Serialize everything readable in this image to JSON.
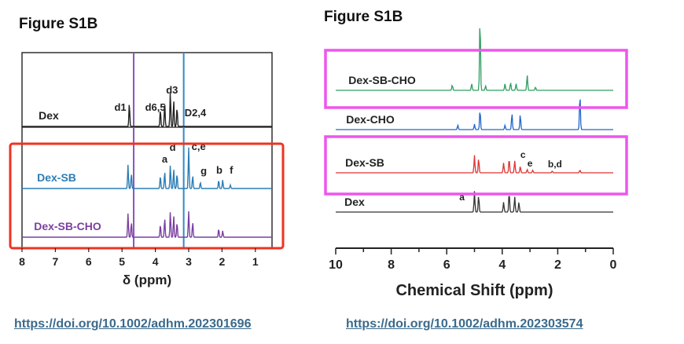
{
  "left": {
    "figure_title": "Figure S1B",
    "doi": "https://doi.org/10.1002/adhm.202301696"
  },
  "right": {
    "figure_title": "Figure S1B",
    "doi": "https://doi.org/10.1002/adhm.202303574"
  },
  "colors": {
    "left_highlight_box": "#ee3322",
    "right_highlight_box": "#ee55ee",
    "dex": "#222222",
    "dex_sb_left": "#2a7db5",
    "dex_sb_cho_left": "#7b3fa0",
    "dex_sb_cho_right": "#2e9e5e",
    "dex_cho_right": "#2266cc",
    "dex_sb_right": "#dd3333",
    "dex_right": "#333333",
    "ref_line_purple": "#8855bb",
    "ref_line_blue": "#3388cc",
    "ref_line_teal": "#22aa99"
  },
  "chart_data": [
    {
      "type": "line",
      "title": "Figure S1B",
      "xlabel": "δ (ppm)",
      "ylabel": "",
      "xlim": [
        8,
        0.5
      ],
      "x_axis_reversed": true,
      "xticks": [
        "8",
        "7",
        "6",
        "5",
        "4",
        "3",
        "2",
        "1"
      ],
      "reference_lines_ppm": [
        4.65,
        3.15
      ],
      "highlight": {
        "series": [
          "Dex-SB",
          "Dex-SB-CHO"
        ],
        "color": "#ee3322"
      },
      "series": [
        {
          "name": "Dex",
          "color": "#222222",
          "peaks": [
            {
              "x": 4.78,
              "h": 0.55
            },
            {
              "x": 3.85,
              "h": 0.4
            },
            {
              "x": 3.72,
              "h": 0.55
            },
            {
              "x": 3.55,
              "h": 0.8
            },
            {
              "x": 3.45,
              "h": 0.6
            },
            {
              "x": 3.35,
              "h": 0.45
            }
          ]
        },
        {
          "name": "Dex-SB",
          "color": "#2a7db5",
          "peaks": [
            {
              "x": 4.82,
              "h": 0.55
            },
            {
              "x": 4.72,
              "h": 0.35
            },
            {
              "x": 3.85,
              "h": 0.3
            },
            {
              "x": 3.72,
              "h": 0.4
            },
            {
              "x": 3.55,
              "h": 0.55
            },
            {
              "x": 3.45,
              "h": 0.45
            },
            {
              "x": 3.35,
              "h": 0.35
            },
            {
              "x": 3.0,
              "h": 0.95
            },
            {
              "x": 2.88,
              "h": 0.3
            },
            {
              "x": 2.65,
              "h": 0.15
            },
            {
              "x": 2.1,
              "h": 0.2
            },
            {
              "x": 1.98,
              "h": 0.2
            },
            {
              "x": 1.75,
              "h": 0.08
            }
          ]
        },
        {
          "name": "Dex-SB-CHO",
          "color": "#7b3fa0",
          "peaks": [
            {
              "x": 4.82,
              "h": 0.55
            },
            {
              "x": 4.72,
              "h": 0.35
            },
            {
              "x": 3.85,
              "h": 0.3
            },
            {
              "x": 3.72,
              "h": 0.45
            },
            {
              "x": 3.55,
              "h": 0.6
            },
            {
              "x": 3.45,
              "h": 0.5
            },
            {
              "x": 3.35,
              "h": 0.35
            },
            {
              "x": 3.0,
              "h": 0.6
            },
            {
              "x": 2.88,
              "h": 0.35
            },
            {
              "x": 2.1,
              "h": 0.2
            },
            {
              "x": 1.98,
              "h": 0.15
            }
          ]
        }
      ],
      "annotations": [
        {
          "text": "d1",
          "x": 5.05,
          "series": "Dex"
        },
        {
          "text": "d6,5",
          "x": 4.0,
          "series": "Dex"
        },
        {
          "text": "d3",
          "x": 3.5,
          "series": "Dex"
        },
        {
          "text": "D2,4",
          "x": 2.8,
          "series": "Dex"
        },
        {
          "text": "d",
          "x": 3.48,
          "series": "Dex-SB"
        },
        {
          "text": "a",
          "x": 3.72,
          "series": "Dex-SB"
        },
        {
          "text": "c,e",
          "x": 2.7,
          "series": "Dex-SB"
        },
        {
          "text": "g",
          "x": 2.55,
          "series": "Dex-SB"
        },
        {
          "text": "b",
          "x": 2.08,
          "series": "Dex-SB"
        },
        {
          "text": "f",
          "x": 1.72,
          "series": "Dex-SB"
        }
      ]
    },
    {
      "type": "line",
      "title": "Figure S1B",
      "xlabel": "Chemical Shift (ppm)",
      "ylabel": "",
      "xlim": [
        10,
        0
      ],
      "x_axis_reversed": true,
      "xticks": [
        "10",
        "8",
        "6",
        "4",
        "2",
        "0"
      ],
      "highlight": {
        "series": [
          "Dex-SB-CHO",
          "Dex-SB"
        ],
        "color": "#ee55ee"
      },
      "series": [
        {
          "name": "Dex-SB-CHO",
          "color": "#2e9e5e",
          "peaks": [
            {
              "x": 4.8,
              "h": 3.3
            },
            {
              "x": 5.8,
              "h": 0.25
            },
            {
              "x": 5.1,
              "h": 0.3
            },
            {
              "x": 4.6,
              "h": 0.2
            },
            {
              "x": 3.9,
              "h": 0.3
            },
            {
              "x": 3.7,
              "h": 0.35
            },
            {
              "x": 3.5,
              "h": 0.3
            },
            {
              "x": 3.1,
              "h": 0.7
            },
            {
              "x": 2.8,
              "h": 0.15
            }
          ]
        },
        {
          "name": "Dex-CHO",
          "color": "#2266cc",
          "peaks": [
            {
              "x": 4.8,
              "h": 0.9
            },
            {
              "x": 5.6,
              "h": 0.2
            },
            {
              "x": 5.0,
              "h": 0.25
            },
            {
              "x": 3.9,
              "h": 0.2
            },
            {
              "x": 3.65,
              "h": 0.75
            },
            {
              "x": 3.35,
              "h": 0.7
            },
            {
              "x": 1.2,
              "h": 1.6
            }
          ]
        },
        {
          "name": "Dex-SB",
          "color": "#dd3333",
          "peaks": [
            {
              "x": 5.0,
              "h": 0.8
            },
            {
              "x": 4.85,
              "h": 0.65
            },
            {
              "x": 3.95,
              "h": 0.45
            },
            {
              "x": 3.75,
              "h": 0.65
            },
            {
              "x": 3.55,
              "h": 0.55
            },
            {
              "x": 3.35,
              "h": 0.3
            },
            {
              "x": 3.1,
              "h": 0.15
            },
            {
              "x": 2.9,
              "h": 0.12
            },
            {
              "x": 2.2,
              "h": 0.08
            },
            {
              "x": 1.2,
              "h": 0.12
            }
          ]
        },
        {
          "name": "Dex",
          "color": "#333333",
          "peaks": [
            {
              "x": 5.0,
              "h": 0.95
            },
            {
              "x": 4.85,
              "h": 0.75
            },
            {
              "x": 3.95,
              "h": 0.45
            },
            {
              "x": 3.75,
              "h": 0.9
            },
            {
              "x": 3.55,
              "h": 0.7
            },
            {
              "x": 3.4,
              "h": 0.45
            }
          ]
        }
      ],
      "annotations": [
        {
          "text": "c",
          "x": 3.25,
          "series": "Dex-SB"
        },
        {
          "text": "e",
          "x": 3.0,
          "series": "Dex-SB"
        },
        {
          "text": "b,d",
          "x": 2.1,
          "series": "Dex-SB"
        },
        {
          "text": "a",
          "x": 5.45,
          "series": "Dex"
        }
      ]
    }
  ]
}
